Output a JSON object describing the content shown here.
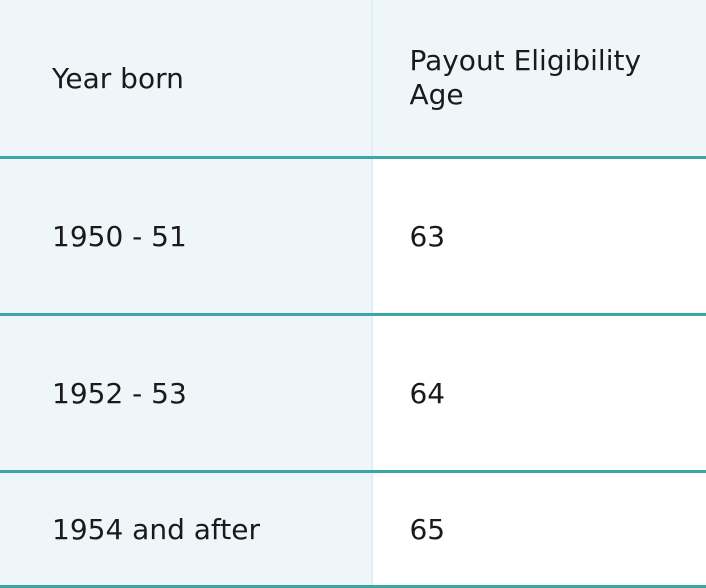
{
  "table": {
    "header": [
      "Year born",
      "Payout Eligibility Age"
    ],
    "rows": [
      [
        "1950 - 51",
        "63"
      ],
      [
        "1952 - 53",
        "64"
      ],
      [
        "1954 and after",
        "65"
      ]
    ]
  }
}
